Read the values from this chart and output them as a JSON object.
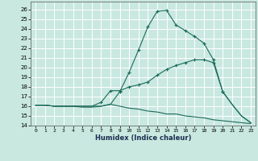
{
  "title": "",
  "xlabel": "Humidex (Indice chaleur)",
  "xlim": [
    -0.5,
    23.5
  ],
  "ylim": [
    14,
    26.8
  ],
  "yticks": [
    14,
    15,
    16,
    17,
    18,
    19,
    20,
    21,
    22,
    23,
    24,
    25,
    26
  ],
  "xticks": [
    0,
    1,
    2,
    3,
    4,
    5,
    6,
    7,
    8,
    9,
    10,
    11,
    12,
    13,
    14,
    15,
    16,
    17,
    18,
    19,
    20,
    21,
    22,
    23
  ],
  "bg_color": "#c9e8e0",
  "line_color": "#1a6b5a",
  "grid_color": "#ffffff",
  "curve1_x": [
    0,
    1,
    2,
    3,
    4,
    5,
    6,
    7,
    8,
    9,
    10,
    11,
    12,
    13,
    14,
    15,
    16,
    17,
    18,
    19,
    20,
    21,
    22,
    23
  ],
  "curve1_y": [
    16.1,
    16.1,
    16.0,
    16.0,
    16.0,
    16.0,
    16.0,
    16.0,
    16.2,
    17.5,
    19.5,
    21.8,
    24.2,
    25.8,
    25.9,
    24.4,
    23.8,
    23.2,
    22.5,
    20.8,
    17.5,
    16.2,
    15.0,
    14.3
  ],
  "curve2_x": [
    0,
    1,
    2,
    3,
    4,
    5,
    6,
    7,
    8,
    9,
    10,
    11,
    12,
    13,
    14,
    15,
    16,
    17,
    18,
    19,
    20,
    21,
    22,
    23
  ],
  "curve2_y": [
    16.1,
    16.1,
    16.0,
    16.0,
    16.0,
    16.0,
    16.0,
    16.4,
    17.6,
    17.6,
    18.0,
    18.2,
    18.5,
    19.2,
    19.8,
    20.2,
    20.5,
    20.8,
    20.8,
    20.5,
    17.5,
    16.2,
    15.0,
    14.3
  ],
  "curve3_x": [
    0,
    1,
    2,
    3,
    4,
    5,
    6,
    7,
    8,
    9,
    10,
    11,
    12,
    13,
    14,
    15,
    16,
    17,
    18,
    19,
    20,
    21,
    22,
    23
  ],
  "curve3_y": [
    16.1,
    16.1,
    16.0,
    16.0,
    16.0,
    15.9,
    15.9,
    16.0,
    16.2,
    16.0,
    15.8,
    15.7,
    15.5,
    15.4,
    15.2,
    15.2,
    15.0,
    14.9,
    14.8,
    14.6,
    14.5,
    14.4,
    14.3,
    14.2
  ],
  "marker_x1": [
    9,
    10,
    11,
    12,
    13,
    14,
    15,
    16,
    17,
    18,
    19,
    20
  ],
  "marker_y1": [
    17.5,
    19.5,
    21.8,
    24.2,
    25.8,
    25.9,
    24.4,
    23.8,
    23.2,
    22.5,
    20.8,
    17.5
  ],
  "marker_x2": [
    7,
    8,
    9,
    10,
    11,
    12,
    13,
    14,
    15,
    16,
    17,
    18,
    19,
    20
  ],
  "marker_y2": [
    16.4,
    17.6,
    17.6,
    18.0,
    18.2,
    18.5,
    19.2,
    19.8,
    20.2,
    20.5,
    20.8,
    20.8,
    20.5,
    17.5
  ]
}
